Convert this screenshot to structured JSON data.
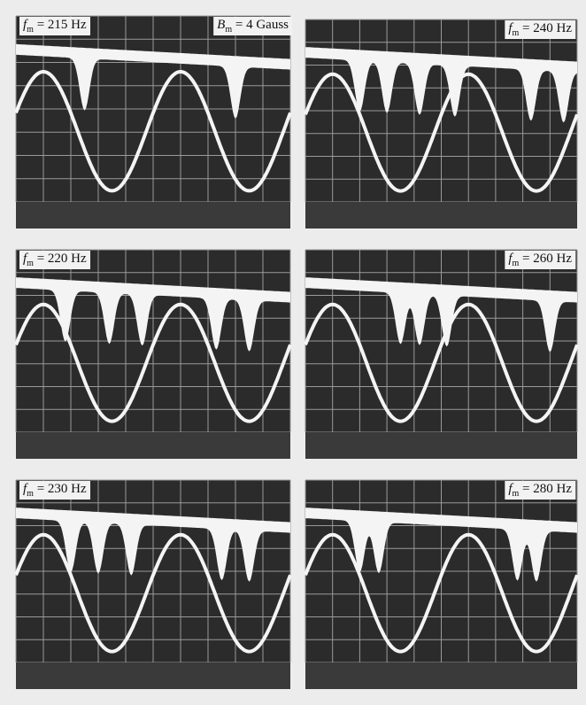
{
  "panels": [
    {
      "label": {
        "symbol": "f",
        "subscript": "m",
        "text": " = 215 Hz"
      },
      "note": {
        "symbol": "B",
        "subscript": "m",
        "text": " = 4 Gauss"
      }
    },
    {
      "label": {
        "symbol": "f",
        "subscript": "m",
        "text": " = 240 Hz"
      }
    },
    {
      "label": {
        "symbol": "f",
        "subscript": "m",
        "text": " = 220 Hz"
      }
    },
    {
      "label": {
        "symbol": "f",
        "subscript": "m",
        "text": " = 260 Hz"
      }
    },
    {
      "label": {
        "symbol": "f",
        "subscript": "m",
        "text": " = 230 Hz"
      }
    },
    {
      "label": {
        "symbol": "f",
        "subscript": "m",
        "text": " = 280 Hz"
      }
    }
  ]
}
